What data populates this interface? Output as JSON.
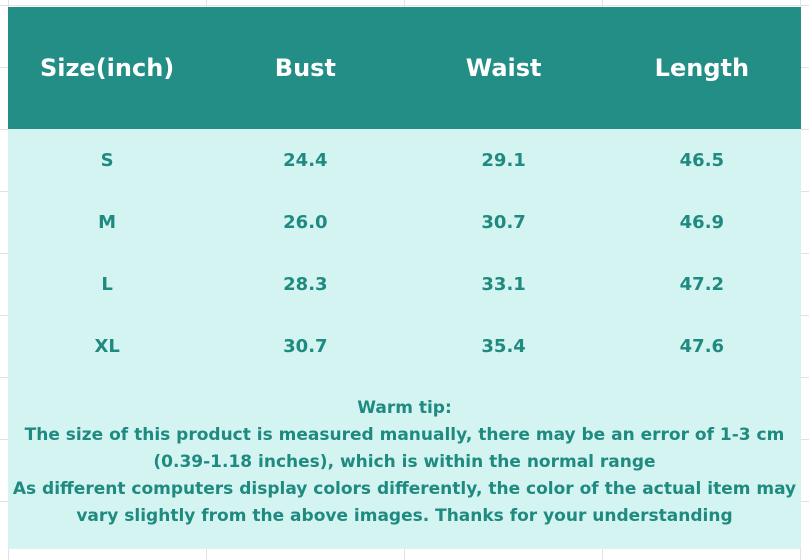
{
  "headers": [
    "Size(inch)",
    "Bust",
    "Waist",
    "Length"
  ],
  "rows": [
    [
      "S",
      "24.4",
      "29.1",
      "46.5"
    ],
    [
      "M",
      "26.0",
      "30.7",
      "46.9"
    ],
    [
      "L",
      "28.3",
      "33.1",
      "47.2"
    ],
    [
      "XL",
      "30.7",
      "35.4",
      "47.6"
    ]
  ],
  "tip": {
    "title": "Warm tip:",
    "line1": "The size of this product is measured manually, there may be an error of 1-3 cm",
    "line2": "(0.39-1.18 inches), which is within the normal range",
    "line3": "As different computers display colors differently, the color of the actual item may",
    "line4": "vary slightly from the above images. Thanks for your understanding"
  },
  "colors": {
    "header": "#238e86",
    "body": "#d3f4f1",
    "text": "#1f8a80"
  }
}
